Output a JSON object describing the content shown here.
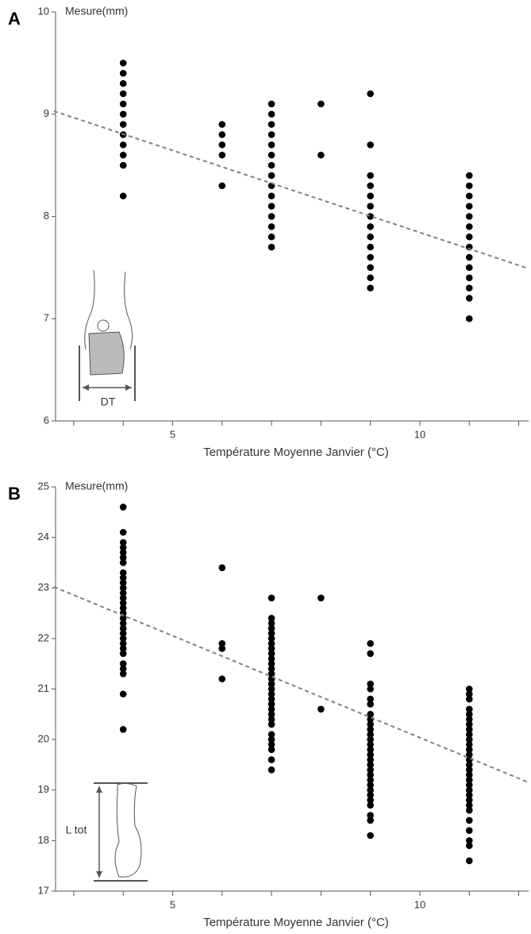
{
  "chart_data": [
    {
      "type": "scatter",
      "panel_label": "A",
      "ylabel": "Mesure(mm)",
      "xlabel": "Température Moyenne Janvier (°C)",
      "inset_label": "DT",
      "xlim": [
        2.6,
        12.2
      ],
      "xticks": [
        5,
        10
      ],
      "xminorticks": [
        3,
        4,
        6,
        7,
        8,
        9,
        11,
        12
      ],
      "ylim": [
        6,
        10
      ],
      "yticks": [
        6,
        7,
        8,
        9,
        10
      ],
      "color": "#000000",
      "series": [
        {
          "x": 4,
          "values": [
            9.5,
            9.4,
            9.3,
            9.2,
            9.1,
            9.0,
            8.9,
            8.8,
            8.7,
            8.6,
            8.5,
            8.2
          ]
        },
        {
          "x": 6,
          "values": [
            8.9,
            8.8,
            8.7,
            8.6,
            8.3
          ]
        },
        {
          "x": 7,
          "values": [
            9.1,
            9.0,
            8.9,
            8.8,
            8.7,
            8.6,
            8.5,
            8.4,
            8.3,
            8.2,
            8.1,
            8.0,
            7.9,
            7.8,
            7.7
          ]
        },
        {
          "x": 8,
          "values": [
            9.1,
            8.6
          ]
        },
        {
          "x": 9,
          "values": [
            9.2,
            8.7,
            8.4,
            8.3,
            8.2,
            8.1,
            8.0,
            7.9,
            7.8,
            7.7,
            7.6,
            7.5,
            7.4,
            7.3
          ]
        },
        {
          "x": 11,
          "values": [
            8.4,
            8.3,
            8.2,
            8.1,
            8.0,
            7.9,
            7.8,
            7.7,
            7.6,
            7.5,
            7.4,
            7.3,
            7.2,
            7.0
          ]
        }
      ],
      "trendline": {
        "color": "#808080",
        "x": [
          2.6,
          12.2
        ],
        "y": [
          9.03,
          7.49
        ]
      }
    },
    {
      "type": "scatter",
      "panel_label": "B",
      "ylabel": "Mesure(mm)",
      "xlabel": "Température Moyenne Janvier (°C)",
      "inset_label": "L tot",
      "xlim": [
        2.6,
        12.2
      ],
      "xticks": [
        5,
        10
      ],
      "xminorticks": [
        3,
        4,
        6,
        7,
        8,
        9,
        11,
        12
      ],
      "ylim": [
        17,
        25
      ],
      "yticks": [
        17,
        18,
        19,
        20,
        21,
        22,
        23,
        24,
        25
      ],
      "color": "#000000",
      "series": [
        {
          "x": 4,
          "values": [
            24.6,
            24.1,
            23.9,
            23.8,
            23.7,
            23.6,
            23.5,
            23.3,
            23.2,
            23.1,
            23.0,
            22.9,
            22.8,
            22.7,
            22.6,
            22.5,
            22.4,
            22.3,
            22.2,
            22.1,
            22.0,
            21.9,
            21.8,
            21.7,
            21.5,
            21.4,
            21.3,
            20.9,
            20.2
          ]
        },
        {
          "x": 6,
          "values": [
            23.4,
            21.9,
            21.8,
            21.2
          ]
        },
        {
          "x": 7,
          "values": [
            22.8,
            22.4,
            22.3,
            22.2,
            22.1,
            22.0,
            21.9,
            21.8,
            21.7,
            21.6,
            21.5,
            21.4,
            21.3,
            21.2,
            21.1,
            21.0,
            20.9,
            20.8,
            20.7,
            20.6,
            20.5,
            20.4,
            20.3,
            20.1,
            20.0,
            19.9,
            19.8,
            19.6,
            19.4
          ]
        },
        {
          "x": 8,
          "values": [
            22.8,
            20.6
          ]
        },
        {
          "x": 9,
          "values": [
            21.9,
            21.7,
            21.1,
            21.0,
            20.8,
            20.7,
            20.5,
            20.4,
            20.3,
            20.2,
            20.1,
            20.0,
            19.9,
            19.8,
            19.7,
            19.6,
            19.5,
            19.4,
            19.3,
            19.2,
            19.1,
            19.0,
            18.9,
            18.8,
            18.7,
            18.5,
            18.4,
            18.1
          ]
        },
        {
          "x": 11,
          "values": [
            21.0,
            20.9,
            20.8,
            20.6,
            20.5,
            20.4,
            20.3,
            20.2,
            20.1,
            20.0,
            19.9,
            19.8,
            19.7,
            19.6,
            19.5,
            19.4,
            19.3,
            19.2,
            19.1,
            19.0,
            18.9,
            18.8,
            18.7,
            18.6,
            18.4,
            18.2,
            18.0,
            17.9,
            17.6
          ]
        }
      ],
      "trendline": {
        "color": "#808080",
        "x": [
          2.6,
          12.2
        ],
        "y": [
          23.02,
          19.15
        ]
      }
    }
  ]
}
